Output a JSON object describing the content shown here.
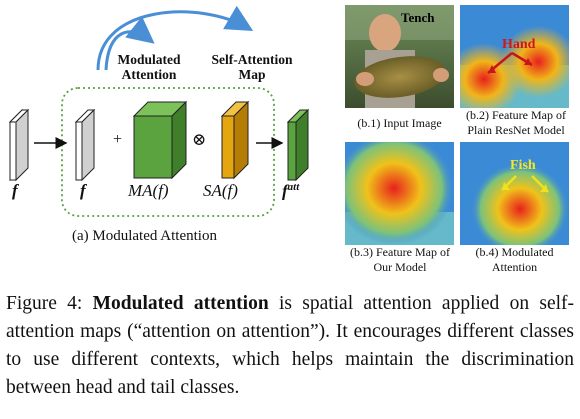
{
  "diagram": {
    "label_modulated": [
      "Modulated",
      "Attention"
    ],
    "label_selfattn": [
      "Self-Attention",
      "Map"
    ],
    "f_input": "f",
    "f_copy": "f",
    "ma_label": "MA(f)",
    "sa_label": "SA(f)",
    "fatt_label": "f",
    "fatt_sup": "att",
    "plus": "+",
    "otimes": "⊗",
    "caption": "(a) Modulated Attention",
    "colors": {
      "green": "#5aa33e",
      "orange": "#e5a50f",
      "dotted_box": "#5aa33e",
      "arrow_blue": "#4a8fd6"
    }
  },
  "panels": {
    "b1": {
      "caption": "(b.1) Input Image",
      "overlay_label": "Tench"
    },
    "b2": {
      "caption": [
        "(b.2) Feature Map of",
        "Plain ResNet Model"
      ],
      "overlay_label": "Hand"
    },
    "b3": {
      "caption": [
        "(b.3) Feature Map of",
        "Our Model"
      ]
    },
    "b4": {
      "caption": [
        "(b.4) Modulated",
        "Attention"
      ],
      "overlay_label": "Fish"
    }
  },
  "figure_caption": {
    "prefix": "Figure 4: ",
    "bold": "Modulated attention",
    "rest": " is spatial attention applied on self-attention maps (“attention on attention”). It encourages different classes to use different contexts, which helps maintain the discrimination between head and tail classes."
  }
}
